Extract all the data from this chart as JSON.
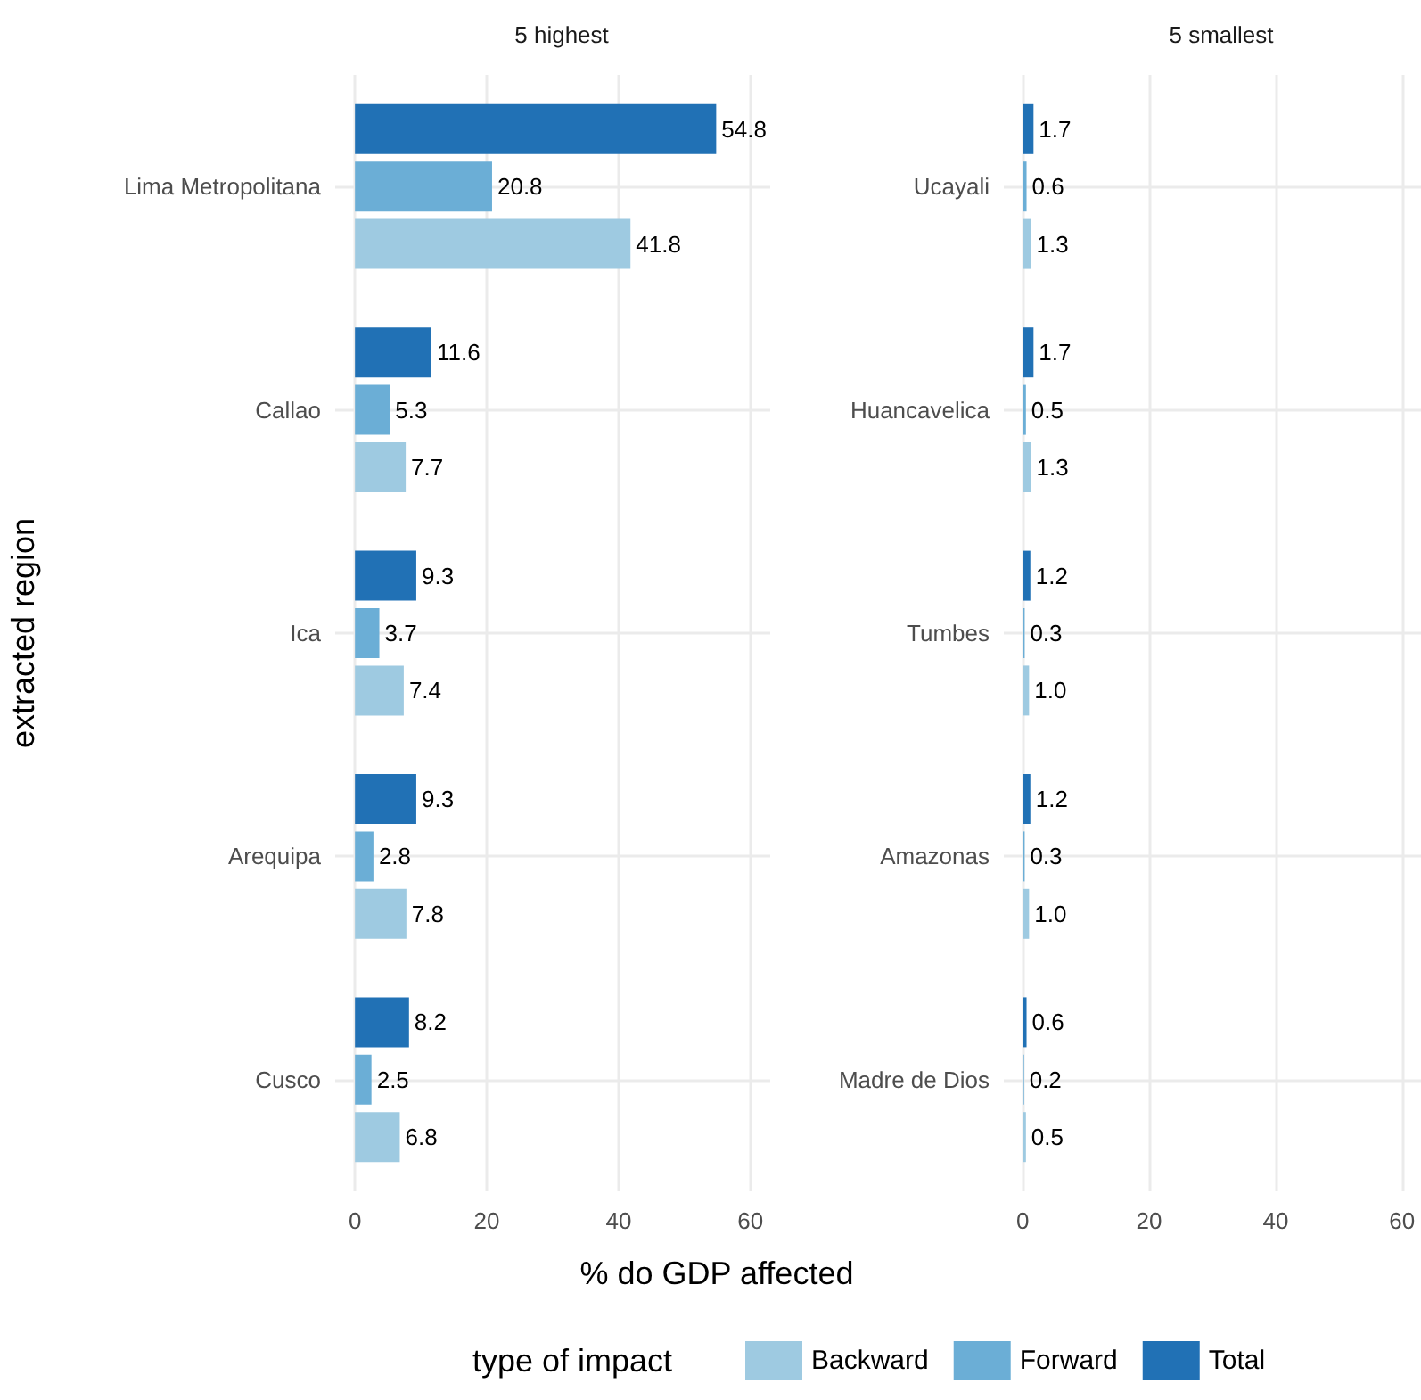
{
  "chart_data": [
    {
      "type": "bar",
      "orientation": "horizontal",
      "title": "5 highest",
      "ylabel": "extracted region",
      "xlabel": "% do GDP affected",
      "legend_title": "type of impact",
      "legend": "bottom",
      "grid": true,
      "categories": [
        "Lima Metropolitana",
        "Callao",
        "Ica",
        "Arequipa",
        "Cusco"
      ],
      "xlim": [
        -3,
        63
      ],
      "xticks": [
        0,
        20,
        40,
        60
      ],
      "series": [
        {
          "name": "Backward",
          "color": "#9ecae1",
          "values": [
            41.8,
            7.7,
            7.4,
            7.8,
            6.8
          ],
          "value_labels": [
            "41.8",
            "7.7",
            "7.4",
            "7.8",
            "6.8"
          ]
        },
        {
          "name": "Forward",
          "color": "#6baed6",
          "values": [
            20.8,
            5.3,
            3.7,
            2.8,
            2.5
          ],
          "value_labels": [
            "20.8",
            "5.3",
            "3.7",
            "2.8",
            "2.5"
          ]
        },
        {
          "name": "Total",
          "color": "#2171b5",
          "values": [
            54.8,
            11.6,
            9.3,
            9.3,
            8.2
          ],
          "value_labels": [
            "54.8",
            "11.6",
            "9.3",
            "9.3",
            "8.2"
          ]
        }
      ]
    },
    {
      "type": "bar",
      "orientation": "horizontal",
      "title": "5 smallest",
      "grid": true,
      "categories": [
        "Ucayali",
        "Huancavelica",
        "Tumbes",
        "Amazonas",
        "Madre de Dios"
      ],
      "xlim": [
        -3,
        63
      ],
      "xticks": [
        0,
        20,
        40,
        60
      ],
      "series": [
        {
          "color": "#9ecae1",
          "values": [
            1.3,
            1.3,
            1.0,
            1.0,
            0.5
          ],
          "value_labels": [
            "1.3",
            "1.3",
            "1.0",
            "1.0",
            "0.5"
          ]
        },
        {
          "color": "#6baed6",
          "values": [
            0.6,
            0.5,
            0.3,
            0.3,
            0.2
          ],
          "value_labels": [
            "0.6",
            "0.5",
            "0.3",
            "0.3",
            "0.2"
          ]
        },
        {
          "color": "#2171b5",
          "values": [
            1.7,
            1.7,
            1.2,
            1.2,
            0.6
          ],
          "value_labels": [
            "1.7",
            "1.7",
            "1.2",
            "1.2",
            "0.6"
          ]
        }
      ]
    }
  ]
}
